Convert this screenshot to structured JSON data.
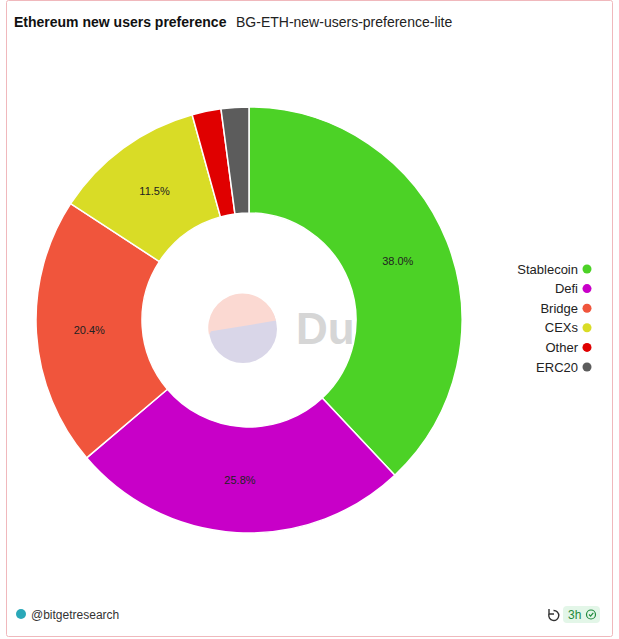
{
  "chart_data": {
    "type": "pie",
    "title": "Ethereum new users preference",
    "subtitle": "BG-ETH-new-users-preference-lite",
    "categories": [
      "Stablecoin",
      "Defi",
      "Bridge",
      "CEXs",
      "Other",
      "ERC20"
    ],
    "values": [
      38.0,
      25.8,
      20.4,
      11.5,
      2.2,
      2.1
    ],
    "value_labels": [
      "38.0%",
      "25.8%",
      "20.4%",
      "11.5%",
      null,
      null
    ],
    "colors": [
      "#4cd226",
      "#c800c8",
      "#f0553c",
      "#d9dc26",
      "#e00000",
      "#5c5c5c"
    ],
    "data_labels": true,
    "legend": "right",
    "annotations": [
      "Dune",
      "@bitgetresearch",
      "3h"
    ]
  }
}
